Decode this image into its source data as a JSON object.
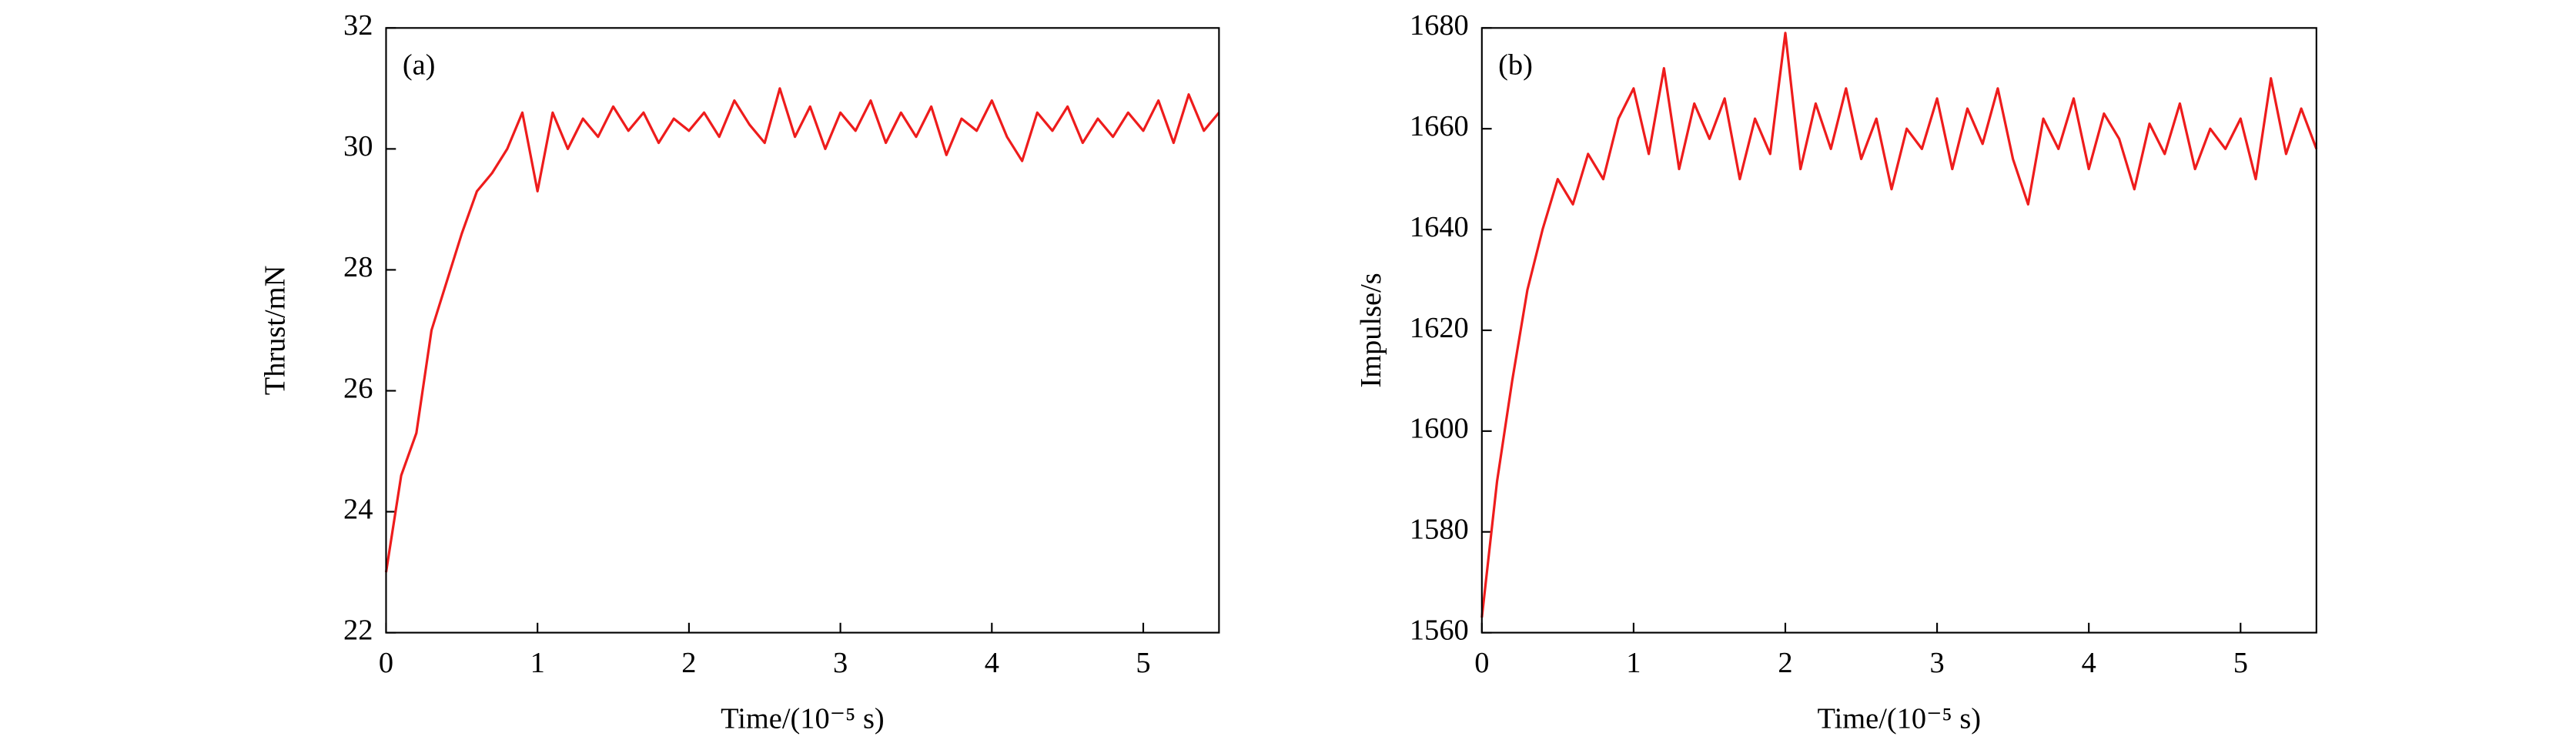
{
  "chart_data": [
    {
      "type": "line",
      "annotation": "(a)",
      "xlabel": "Time/(10⁻⁵ s)",
      "ylabel": "Thrust/mN",
      "xlim": [
        0,
        5.5
      ],
      "xticks": [
        0,
        1,
        2,
        3,
        4,
        5
      ],
      "ylim": [
        22,
        32
      ],
      "yticks": [
        22,
        24,
        26,
        28,
        30,
        32
      ],
      "x": [
        0,
        0.1,
        0.2,
        0.3,
        0.4,
        0.5,
        0.6,
        0.7,
        0.8,
        0.9,
        1.0,
        1.1,
        1.2,
        1.3,
        1.4,
        1.5,
        1.6,
        1.7,
        1.8,
        1.9,
        2.0,
        2.1,
        2.2,
        2.3,
        2.4,
        2.5,
        2.6,
        2.7,
        2.8,
        2.9,
        3.0,
        3.1,
        3.2,
        3.3,
        3.4,
        3.5,
        3.6,
        3.7,
        3.8,
        3.9,
        4.0,
        4.1,
        4.2,
        4.3,
        4.4,
        4.5,
        4.6,
        4.7,
        4.8,
        4.9,
        5.0,
        5.1,
        5.2,
        5.3,
        5.4,
        5.5
      ],
      "series": [
        {
          "color": "#ee1c1c",
          "values": [
            23.0,
            24.6,
            25.3,
            27.0,
            27.8,
            28.6,
            29.3,
            29.6,
            30.0,
            30.6,
            29.3,
            30.6,
            30.0,
            30.5,
            30.2,
            30.7,
            30.3,
            30.6,
            30.1,
            30.5,
            30.3,
            30.6,
            30.2,
            30.8,
            30.4,
            30.1,
            31.0,
            30.2,
            30.7,
            30.0,
            30.6,
            30.3,
            30.8,
            30.1,
            30.6,
            30.2,
            30.7,
            29.9,
            30.5,
            30.3,
            30.8,
            30.2,
            29.8,
            30.6,
            30.3,
            30.7,
            30.1,
            30.5,
            30.2,
            30.6,
            30.3,
            30.8,
            30.1,
            30.9,
            30.3,
            30.6
          ]
        }
      ]
    },
    {
      "type": "line",
      "annotation": "(b)",
      "xlabel": "Time/(10⁻⁵ s)",
      "ylabel": "Impulse/s",
      "xlim": [
        0,
        5.5
      ],
      "xticks": [
        0,
        1,
        2,
        3,
        4,
        5
      ],
      "ylim": [
        1560,
        1680
      ],
      "yticks": [
        1560,
        1580,
        1600,
        1620,
        1640,
        1660,
        1680
      ],
      "x": [
        0,
        0.1,
        0.2,
        0.3,
        0.4,
        0.5,
        0.6,
        0.7,
        0.8,
        0.9,
        1.0,
        1.1,
        1.2,
        1.3,
        1.4,
        1.5,
        1.6,
        1.7,
        1.8,
        1.9,
        2.0,
        2.1,
        2.2,
        2.3,
        2.4,
        2.5,
        2.6,
        2.7,
        2.8,
        2.9,
        3.0,
        3.1,
        3.2,
        3.3,
        3.4,
        3.5,
        3.6,
        3.7,
        3.8,
        3.9,
        4.0,
        4.1,
        4.2,
        4.3,
        4.4,
        4.5,
        4.6,
        4.7,
        4.8,
        4.9,
        5.0,
        5.1,
        5.2,
        5.3,
        5.4,
        5.5
      ],
      "series": [
        {
          "color": "#ee1c1c",
          "values": [
            1563,
            1590,
            1610,
            1628,
            1640,
            1650,
            1645,
            1655,
            1650,
            1662,
            1668,
            1655,
            1672,
            1652,
            1665,
            1658,
            1666,
            1650,
            1662,
            1655,
            1679,
            1652,
            1665,
            1656,
            1668,
            1654,
            1662,
            1648,
            1660,
            1656,
            1666,
            1652,
            1664,
            1657,
            1668,
            1654,
            1645,
            1662,
            1656,
            1666,
            1652,
            1663,
            1658,
            1648,
            1661,
            1655,
            1665,
            1652,
            1660,
            1656,
            1662,
            1650,
            1670,
            1655,
            1664,
            1656
          ]
        }
      ]
    }
  ]
}
